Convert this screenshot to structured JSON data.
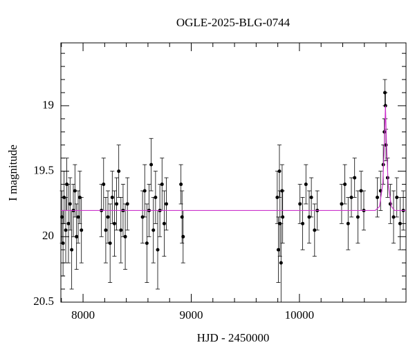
{
  "chart_data": {
    "type": "scatter",
    "title": "OGLE-2025-BLG-0744",
    "x_label": "HJD - 2450000",
    "y_label": "I magnitude",
    "xlim": [
      7795,
      10985
    ],
    "ylim": [
      20.5,
      18.52
    ],
    "xticks": [
      8000,
      9000,
      10000
    ],
    "yticks": [
      19,
      19.5,
      20,
      20.5
    ],
    "xticks_minor": [
      7800,
      8200,
      8400,
      8600,
      8800,
      9200,
      9400,
      9600,
      9800,
      10200,
      10400,
      10600,
      10800
    ],
    "yticks_minor": [
      18.6,
      18.7,
      18.8,
      18.9,
      19.1,
      19.2,
      19.3,
      19.4,
      19.6,
      19.7,
      19.8,
      19.9,
      20.1,
      20.2,
      20.3,
      20.4
    ],
    "series": [
      {
        "color": "#000000",
        "x": [
          7805,
          7815,
          7825,
          7840,
          7850,
          7865,
          7880,
          7895,
          7910,
          7925,
          7940,
          7955,
          7970,
          7985,
          8170,
          8190,
          8210,
          8230,
          8250,
          8270,
          8290,
          8310,
          8330,
          8350,
          8370,
          8390,
          8410,
          8550,
          8570,
          8590,
          8610,
          8630,
          8650,
          8670,
          8690,
          8710,
          8730,
          8750,
          8770,
          8905,
          8915,
          8925,
          9795,
          9805,
          9815,
          9820,
          9830,
          9840,
          9845,
          10005,
          10030,
          10060,
          10090,
          10110,
          10140,
          10165,
          10390,
          10420,
          10450,
          10480,
          10510,
          10540,
          10570,
          10595,
          10720,
          10750,
          10775,
          10785,
          10790,
          10795,
          10800,
          10815,
          10840,
          10870,
          10900,
          10930,
          10960
        ],
        "values": [
          19.85,
          20.05,
          19.7,
          19.95,
          19.6,
          19.9,
          19.75,
          20.1,
          19.8,
          19.65,
          20.0,
          19.85,
          19.7,
          19.95,
          19.8,
          19.6,
          19.95,
          19.85,
          20.05,
          19.7,
          19.9,
          19.75,
          19.5,
          19.95,
          19.8,
          20.0,
          19.75,
          19.85,
          19.65,
          20.05,
          19.8,
          19.45,
          19.95,
          19.7,
          20.1,
          19.8,
          19.6,
          19.9,
          19.75,
          19.6,
          19.85,
          20.0,
          19.7,
          20.1,
          19.5,
          19.9,
          20.2,
          19.65,
          19.85,
          19.75,
          19.9,
          19.6,
          19.85,
          19.7,
          19.95,
          19.8,
          19.75,
          19.6,
          19.9,
          19.7,
          19.55,
          19.85,
          19.65,
          19.8,
          19.7,
          19.65,
          19.45,
          19.2,
          18.9,
          19.0,
          19.3,
          19.55,
          19.75,
          19.85,
          19.7,
          19.9,
          19.8
        ],
        "errors": [
          0.2,
          0.25,
          0.2,
          0.25,
          0.2,
          0.3,
          0.2,
          0.3,
          0.2,
          0.2,
          0.25,
          0.2,
          0.2,
          0.25,
          0.2,
          0.2,
          0.25,
          0.2,
          0.3,
          0.2,
          0.25,
          0.2,
          0.2,
          0.25,
          0.2,
          0.25,
          0.2,
          0.2,
          0.2,
          0.3,
          0.2,
          0.2,
          0.25,
          0.2,
          0.3,
          0.2,
          0.2,
          0.25,
          0.2,
          0.15,
          0.2,
          0.2,
          0.2,
          0.25,
          0.2,
          0.25,
          0.3,
          0.2,
          0.2,
          0.15,
          0.2,
          0.15,
          0.2,
          0.15,
          0.2,
          0.15,
          0.15,
          0.15,
          0.2,
          0.15,
          0.15,
          0.2,
          0.15,
          0.15,
          0.15,
          0.15,
          0.15,
          0.1,
          0.1,
          0.1,
          0.12,
          0.15,
          0.15,
          0.2,
          0.15,
          0.2,
          0.15
        ]
      },
      {
        "type": "line",
        "color": "#cc33cc",
        "x": [
          7795,
          10700,
          10740,
          10770,
          10785,
          10795,
          10805,
          10820,
          10850,
          10880,
          10985
        ],
        "values": [
          19.8,
          19.8,
          19.77,
          19.6,
          19.3,
          19.0,
          19.3,
          19.6,
          19.77,
          19.8,
          19.8
        ]
      }
    ]
  }
}
